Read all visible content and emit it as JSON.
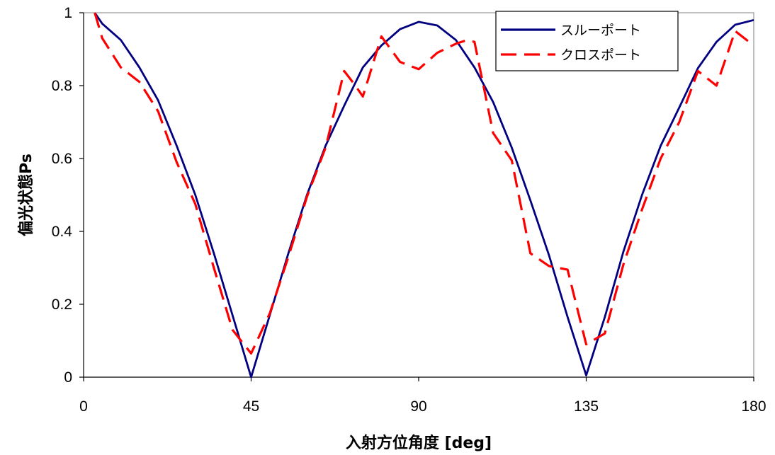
{
  "chart_data": {
    "type": "line",
    "xlabel": "入射方位角度 [deg]",
    "ylabel": "偏光状態Ps",
    "xlim": [
      0,
      180
    ],
    "ylim": [
      0,
      1
    ],
    "xticks": [
      "0",
      "45",
      "90",
      "135",
      "180"
    ],
    "yticks": [
      "0",
      "0.2",
      "0.4",
      "0.6",
      "0.8",
      "1"
    ],
    "grid": false,
    "legend_position": "top-right",
    "series": [
      {
        "name": "スルーポート",
        "color": "#000080",
        "style": "solid",
        "x": [
          3,
          5,
          10,
          15,
          20,
          25,
          30,
          35,
          40,
          45,
          50,
          55,
          60,
          65,
          70,
          75,
          80,
          85,
          90,
          95,
          100,
          105,
          110,
          115,
          120,
          125,
          130,
          135,
          140,
          145,
          150,
          155,
          160,
          165,
          170,
          175,
          180
        ],
        "y": [
          1.0,
          0.97,
          0.925,
          0.85,
          0.76,
          0.635,
          0.5,
          0.34,
          0.17,
          0.0,
          0.17,
          0.34,
          0.5,
          0.635,
          0.745,
          0.85,
          0.91,
          0.955,
          0.975,
          0.965,
          0.925,
          0.85,
          0.755,
          0.63,
          0.485,
          0.335,
          0.165,
          0.005,
          0.165,
          0.345,
          0.5,
          0.635,
          0.74,
          0.848,
          0.92,
          0.967,
          0.98
        ]
      },
      {
        "name": "クロスポート",
        "color": "#ff0000",
        "style": "dashed",
        "x": [
          3,
          5,
          10,
          15,
          20,
          25,
          30,
          35,
          40,
          45,
          50,
          55,
          60,
          65,
          70,
          73,
          75,
          80,
          85,
          90,
          95,
          100,
          103,
          105,
          110,
          115,
          120,
          125,
          130,
          135,
          140,
          145,
          150,
          155,
          160,
          165,
          170,
          175,
          180
        ],
        "y": [
          1.0,
          0.93,
          0.85,
          0.81,
          0.73,
          0.59,
          0.475,
          0.3,
          0.13,
          0.065,
          0.175,
          0.33,
          0.495,
          0.63,
          0.84,
          0.8,
          0.77,
          0.935,
          0.865,
          0.845,
          0.89,
          0.915,
          0.925,
          0.92,
          0.67,
          0.595,
          0.34,
          0.305,
          0.295,
          0.09,
          0.12,
          0.31,
          0.46,
          0.6,
          0.7,
          0.84,
          0.8,
          0.95,
          0.91
        ]
      }
    ]
  }
}
